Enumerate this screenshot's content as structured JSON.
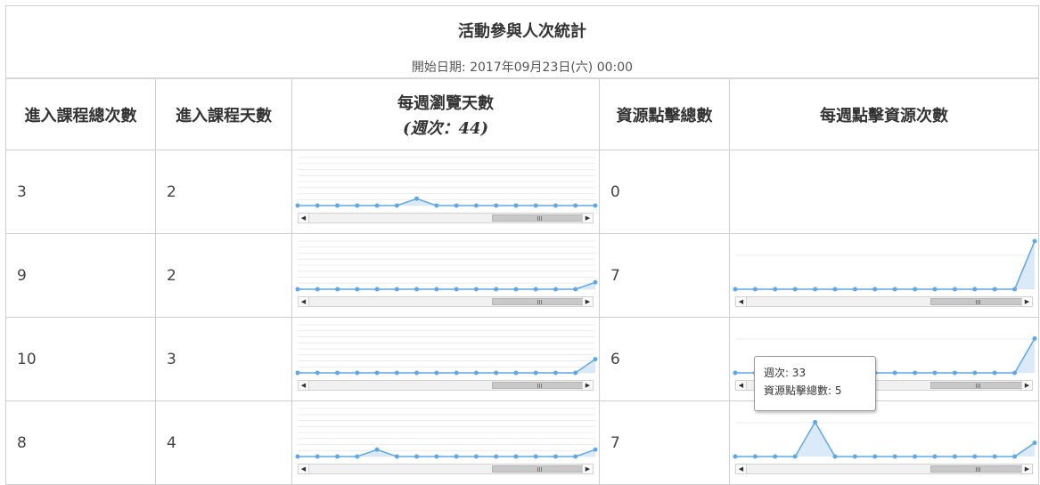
{
  "title": "活動參與人次統計",
  "start_date": "開始日期: 2017年09月23日(六) 00:00",
  "headers": {
    "total_entries": "進入課程總次數",
    "days_entered": "進入課程天數",
    "weekly_browse_days": "每週瀏覽天數",
    "week_label": "(週次：44)",
    "resource_clicks_total": "資源點擊總數",
    "weekly_resource_clicks": "每週點擊資源次數"
  },
  "rows": [
    {
      "total_entries": "3",
      "days_entered": "2",
      "resource_clicks_total": "0"
    },
    {
      "total_entries": "9",
      "days_entered": "2",
      "resource_clicks_total": "7"
    },
    {
      "total_entries": "10",
      "days_entered": "3",
      "resource_clicks_total": "6"
    },
    {
      "total_entries": "8",
      "days_entered": "4",
      "resource_clicks_total": "7"
    }
  ],
  "sparklines": {
    "browse": [
      [
        0,
        0,
        0,
        0,
        0,
        0,
        1,
        0,
        0,
        0,
        0,
        0,
        0,
        0,
        0,
        0
      ],
      [
        0,
        0,
        0,
        0,
        0,
        0,
        0,
        0,
        0,
        0,
        0,
        0,
        0,
        0,
        0,
        1
      ],
      [
        0,
        0,
        0,
        0,
        0,
        0,
        0,
        0,
        0,
        0,
        0,
        0,
        0,
        0,
        0,
        2
      ],
      [
        0,
        0,
        0,
        0,
        1,
        0,
        0,
        0,
        0,
        0,
        0,
        0,
        0,
        0,
        0,
        1
      ]
    ],
    "clicks": [
      null,
      [
        0,
        0,
        0,
        0,
        0,
        0,
        0,
        0,
        0,
        0,
        0,
        0,
        0,
        0,
        0,
        7
      ],
      [
        0,
        0,
        0,
        0,
        0,
        0,
        0,
        0,
        0,
        0,
        0,
        0,
        0,
        0,
        0,
        5
      ],
      [
        0,
        0,
        0,
        0,
        5,
        0,
        0,
        0,
        0,
        0,
        0,
        0,
        0,
        0,
        0,
        2
      ]
    ],
    "line_color": "#5fa8e8",
    "fill_color": "#d6e8f8",
    "scroll_thumb_label": "III"
  },
  "tooltip": {
    "line1": "週次: 33",
    "line2": "資源點擊總數: 5"
  },
  "icons": {
    "scroll_left": "◀",
    "scroll_right": "▶"
  }
}
